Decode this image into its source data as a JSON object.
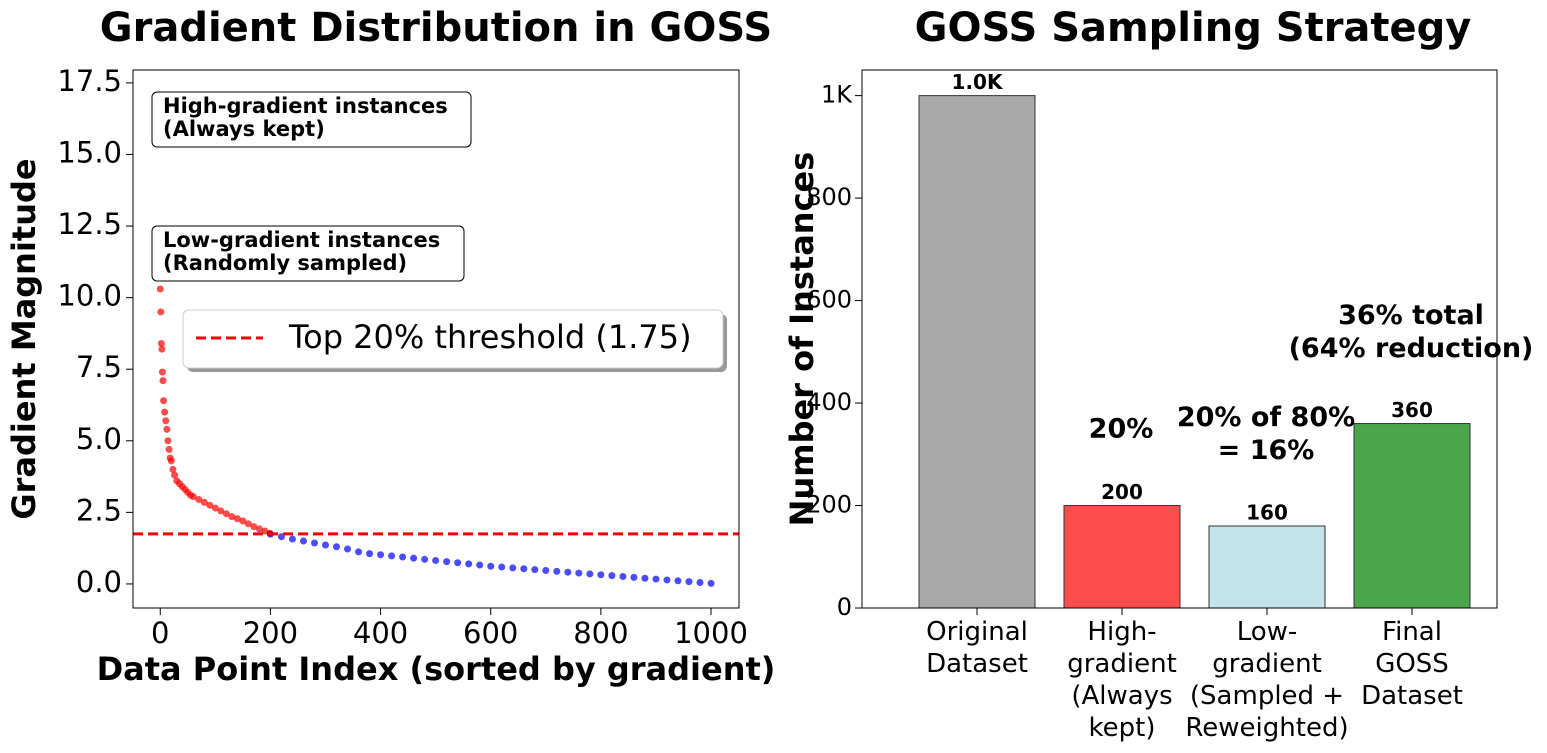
{
  "chart_data": [
    {
      "type": "scatter",
      "title": "Gradient Distribution in GOSS",
      "x_label": "Data Point Index (sorted by gradient)",
      "y_label": "Gradient Magnitude",
      "xlim": [
        -49.5,
        1050.8
      ],
      "ylim": [
        -0.84,
        17.95
      ],
      "xticks": [
        0,
        200,
        400,
        600,
        800,
        1000
      ],
      "yticks": [
        {
          "value": 0,
          "label": "0.0"
        },
        2.5,
        {
          "value": 5,
          "label": "5.0"
        },
        7.5,
        {
          "value": 10,
          "label": "10.0"
        },
        12.5,
        {
          "value": 15,
          "label": "15.0"
        },
        17.5
      ],
      "series": [
        {
          "color": "#ff0000",
          "x": [
            0,
            1,
            2,
            3,
            4,
            5,
            6,
            8,
            10,
            12,
            14,
            16,
            18,
            20,
            23,
            26,
            30,
            35,
            40,
            45,
            50,
            55,
            60,
            70,
            80,
            90,
            100,
            110,
            120,
            130,
            140,
            150,
            160,
            170,
            180,
            190,
            199
          ],
          "values": [
            10.3,
            9.5,
            8.4,
            8.2,
            7.4,
            7.1,
            6.4,
            6.0,
            5.7,
            5.4,
            5.0,
            4.7,
            4.4,
            4.3,
            4.0,
            3.8,
            3.6,
            3.5,
            3.4,
            3.3,
            3.2,
            3.1,
            3.05,
            2.95,
            2.85,
            2.75,
            2.65,
            2.55,
            2.45,
            2.35,
            2.28,
            2.2,
            2.1,
            2.0,
            1.92,
            1.85,
            1.77
          ]
        },
        {
          "color": "#0000ff",
          "x": [
            200,
            220,
            240,
            260,
            280,
            300,
            320,
            340,
            360,
            380,
            400,
            420,
            440,
            460,
            480,
            500,
            520,
            540,
            560,
            580,
            600,
            620,
            640,
            660,
            680,
            700,
            720,
            740,
            760,
            780,
            800,
            820,
            840,
            860,
            880,
            900,
            920,
            940,
            960,
            980,
            1000
          ],
          "values": [
            1.74,
            1.65,
            1.57,
            1.5,
            1.43,
            1.36,
            1.3,
            1.22,
            1.12,
            1.06,
            1.02,
            0.98,
            0.94,
            0.9,
            0.86,
            0.82,
            0.78,
            0.74,
            0.7,
            0.66,
            0.62,
            0.59,
            0.56,
            0.53,
            0.5,
            0.47,
            0.44,
            0.41,
            0.38,
            0.35,
            0.32,
            0.29,
            0.26,
            0.23,
            0.2,
            0.17,
            0.14,
            0.11,
            0.08,
            0.05,
            0.02
          ]
        }
      ],
      "threshold": {
        "value": 1.75,
        "label": "Top 20% threshold (1.75)",
        "color": "#ff0000"
      },
      "legend": "center right",
      "annotations": [
        {
          "text": "High-gradient instances\n(Always kept)",
          "color": "#ff0000"
        },
        {
          "text": "Low-gradient instances\n(Randomly sampled)",
          "color": "#0000ff"
        }
      ]
    },
    {
      "type": "bar",
      "title": "GOSS Sampling Strategy",
      "y_label": "Number of Instances",
      "categories": [
        "Original\nDataset",
        "High-\ngradient\n(Always\nkept)",
        "Low-\ngradient\n(Sampled +\nReweighted)",
        "Final\nGOSS\nDataset"
      ],
      "values": [
        1000,
        200,
        160,
        360
      ],
      "value_labels": [
        "1.0K",
        "200",
        "160",
        "360"
      ],
      "colors": [
        "#a9a9a9",
        "#ff4d4d",
        "#c4e3ec",
        "#4aa64a"
      ],
      "ylim": [
        0,
        1050
      ],
      "yticks": [
        0,
        200,
        400,
        600,
        800,
        {
          "value": 1000,
          "label": "1K"
        }
      ],
      "annotations": [
        {
          "text": "20%",
          "color": "#ff0000"
        },
        {
          "text": "20% of 80%\n= 16%",
          "color": "#0000ff"
        },
        {
          "text": "36% total\n(64% reduction)",
          "color": "#008000"
        }
      ]
    }
  ]
}
